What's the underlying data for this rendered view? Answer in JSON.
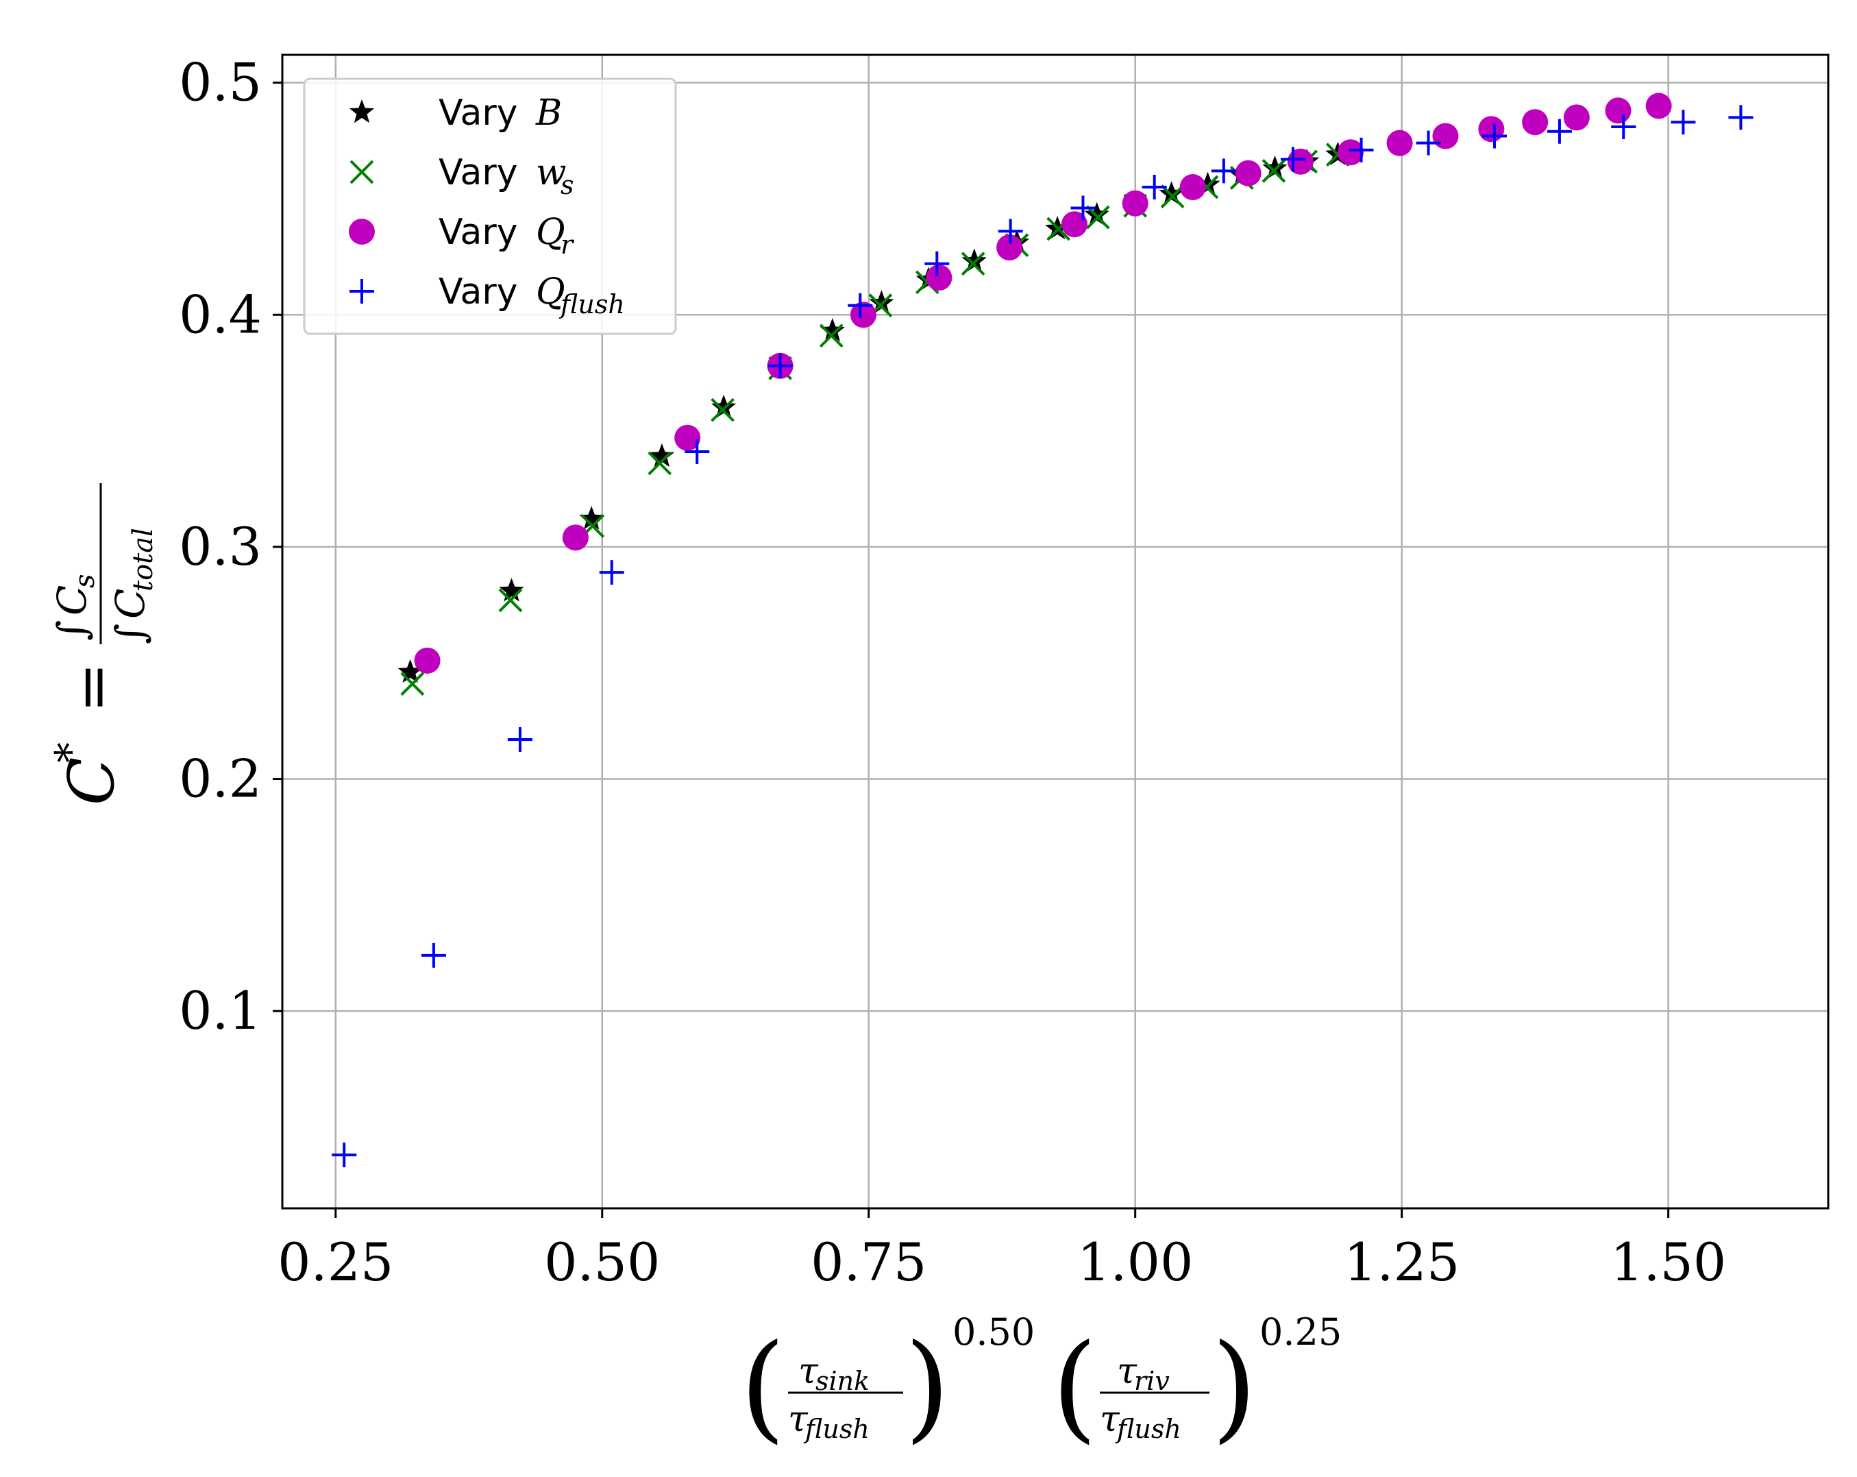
{
  "chart_data": {
    "type": "scatter",
    "title": "",
    "xlabel": "(τ_sink / τ_flush)^0.50 (τ_riv / τ_flush)^0.25",
    "ylabel": "C* = ∫C_s / ∫C_total",
    "xlim": [
      0.2,
      1.65
    ],
    "ylim": [
      0.015,
      0.512
    ],
    "grid": true,
    "legend_position": "top-left",
    "x_ticks": [
      0.25,
      0.5,
      0.75,
      1.0,
      1.25,
      1.5
    ],
    "x_tick_labels": [
      "0.25",
      "0.50",
      "0.75",
      "1.00",
      "1.25",
      "1.50"
    ],
    "y_ticks": [
      0.1,
      0.2,
      0.3,
      0.4,
      0.5
    ],
    "y_tick_labels": [
      "0.1",
      "0.2",
      "0.3",
      "0.4",
      "0.5"
    ],
    "series": [
      {
        "name": "Vary B",
        "legend_prefix": "Vary",
        "legend_var": "B",
        "legend_sub": "",
        "marker": "star",
        "color": "#000000",
        "x": [
          0.32,
          0.415,
          0.49,
          0.556,
          0.614,
          0.667,
          0.716,
          0.762,
          0.806,
          0.849,
          0.889,
          0.927,
          0.964,
          1.0,
          1.034,
          1.068,
          1.1,
          1.131,
          1.161,
          1.19
        ],
        "y": [
          0.246,
          0.281,
          0.312,
          0.339,
          0.36,
          0.378,
          0.393,
          0.405,
          0.415,
          0.423,
          0.431,
          0.437,
          0.443,
          0.448,
          0.452,
          0.456,
          0.46,
          0.463,
          0.466,
          0.469
        ]
      },
      {
        "name": "Vary w_s",
        "legend_prefix": "Vary",
        "legend_var": "w",
        "legend_sub": "s",
        "marker": "x",
        "color": "#008000",
        "x": [
          0.322,
          0.414,
          0.491,
          0.554,
          0.613,
          0.667,
          0.715,
          0.761,
          0.805,
          0.848,
          0.889,
          0.928,
          0.965,
          1.0,
          1.035,
          1.067,
          1.1,
          1.13,
          1.16,
          1.19
        ],
        "y": [
          0.241,
          0.277,
          0.309,
          0.336,
          0.359,
          0.377,
          0.391,
          0.404,
          0.414,
          0.422,
          0.43,
          0.437,
          0.442,
          0.447,
          0.451,
          0.455,
          0.459,
          0.462,
          0.466,
          0.469
        ]
      },
      {
        "name": "Vary Q_r",
        "legend_prefix": "Vary",
        "legend_var": "Q",
        "legend_sub": "r",
        "marker": "circle",
        "color": "#bf00bf",
        "x": [
          0.336,
          0.475,
          0.58,
          0.667,
          0.745,
          0.816,
          0.882,
          0.943,
          1.0,
          1.054,
          1.106,
          1.155,
          1.202,
          1.248,
          1.291,
          1.334,
          1.375,
          1.414,
          1.453,
          1.491
        ],
        "y": [
          0.251,
          0.304,
          0.347,
          0.378,
          0.4,
          0.416,
          0.429,
          0.439,
          0.448,
          0.455,
          0.461,
          0.466,
          0.47,
          0.474,
          0.477,
          0.48,
          0.483,
          0.485,
          0.488,
          0.49
        ]
      },
      {
        "name": "Vary Q_flush",
        "legend_prefix": "Vary",
        "legend_var": "Q",
        "legend_sub": "flush",
        "marker": "plus",
        "color": "#0000ff",
        "x": [
          0.258,
          0.342,
          0.423,
          0.509,
          0.589,
          0.667,
          0.742,
          0.814,
          0.883,
          0.951,
          1.018,
          1.083,
          1.148,
          1.212,
          1.275,
          1.337,
          1.398,
          1.458,
          1.514,
          1.568
        ],
        "y": [
          0.038,
          0.124,
          0.217,
          0.289,
          0.341,
          0.378,
          0.404,
          0.422,
          0.436,
          0.446,
          0.455,
          0.462,
          0.467,
          0.471,
          0.474,
          0.477,
          0.479,
          0.481,
          0.483,
          0.485
        ]
      }
    ]
  }
}
